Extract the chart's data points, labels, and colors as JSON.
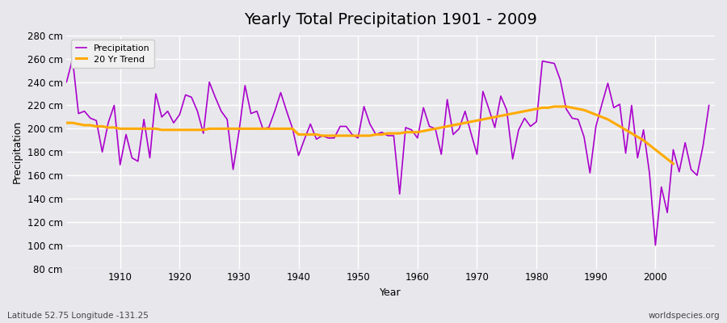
{
  "title": "Yearly Total Precipitation 1901 - 2009",
  "xlabel": "Year",
  "ylabel": "Precipitation",
  "footnote_left": "Latitude 52.75 Longitude -131.25",
  "footnote_right": "worldspecies.org",
  "ylim": [
    80,
    280
  ],
  "ytick_step": 20,
  "years": [
    1901,
    1902,
    1903,
    1904,
    1905,
    1906,
    1907,
    1908,
    1909,
    1910,
    1911,
    1912,
    1913,
    1914,
    1915,
    1916,
    1917,
    1918,
    1919,
    1920,
    1921,
    1922,
    1923,
    1924,
    1925,
    1926,
    1927,
    1928,
    1929,
    1930,
    1931,
    1932,
    1933,
    1934,
    1935,
    1936,
    1937,
    1938,
    1939,
    1940,
    1941,
    1942,
    1943,
    1944,
    1945,
    1946,
    1947,
    1948,
    1949,
    1950,
    1951,
    1952,
    1953,
    1954,
    1955,
    1956,
    1957,
    1958,
    1959,
    1960,
    1961,
    1962,
    1963,
    1964,
    1965,
    1966,
    1967,
    1968,
    1969,
    1970,
    1971,
    1972,
    1973,
    1974,
    1975,
    1976,
    1977,
    1978,
    1979,
    1980,
    1981,
    1982,
    1983,
    1984,
    1985,
    1986,
    1987,
    1988,
    1989,
    1990,
    1991,
    1992,
    1993,
    1994,
    1995,
    1996,
    1997,
    1998,
    1999,
    2000,
    2001,
    2002,
    2003,
    2004,
    2005,
    2006,
    2007,
    2008,
    2009
  ],
  "precip": [
    240,
    260,
    213,
    215,
    209,
    207,
    180,
    205,
    220,
    169,
    195,
    175,
    172,
    208,
    175,
    230,
    210,
    215,
    205,
    212,
    229,
    227,
    215,
    196,
    240,
    227,
    215,
    208,
    165,
    198,
    237,
    213,
    215,
    200,
    201,
    215,
    231,
    215,
    200,
    177,
    191,
    204,
    191,
    194,
    192,
    192,
    202,
    202,
    195,
    192,
    219,
    204,
    195,
    197,
    194,
    194,
    144,
    201,
    199,
    192,
    218,
    202,
    200,
    178,
    225,
    195,
    200,
    215,
    196,
    178,
    232,
    217,
    201,
    228,
    216,
    174,
    199,
    209,
    202,
    206,
    258,
    257,
    256,
    242,
    217,
    209,
    208,
    193,
    162,
    202,
    221,
    239,
    218,
    221,
    179,
    220,
    175,
    199,
    162,
    100,
    150,
    128,
    182,
    163,
    188,
    165,
    160,
    185,
    220
  ],
  "trend": [
    205,
    205,
    204,
    203,
    203,
    202,
    202,
    201,
    201,
    200,
    200,
    200,
    200,
    200,
    200,
    200,
    199,
    199,
    199,
    199,
    199,
    199,
    199,
    199,
    200,
    200,
    200,
    200,
    200,
    200,
    200,
    200,
    200,
    200,
    200,
    200,
    200,
    200,
    200,
    195,
    195,
    195,
    195,
    194,
    194,
    194,
    194,
    194,
    194,
    194,
    194,
    194,
    195,
    195,
    196,
    196,
    196,
    197,
    197,
    197,
    198,
    199,
    200,
    201,
    202,
    203,
    204,
    205,
    206,
    207,
    208,
    209,
    210,
    211,
    212,
    213,
    214,
    215,
    216,
    217,
    218,
    218,
    219,
    219,
    219,
    218,
    217,
    216,
    214,
    212,
    210,
    208,
    205,
    202,
    199,
    196,
    193,
    190,
    186,
    182,
    178,
    174,
    170,
    null,
    null,
    null,
    null,
    null,
    null
  ],
  "precip_color": "#aa00cc",
  "trend_color": "#ffaa00",
  "bg_color": "#e8e8ec",
  "grid_color": "#ffffff",
  "legend_bg": "#f0f0f0",
  "legend_edge": "#cccccc",
  "title_fontsize": 14,
  "axis_label_fontsize": 9,
  "tick_fontsize": 8.5,
  "footnote_fontsize": 7.5
}
